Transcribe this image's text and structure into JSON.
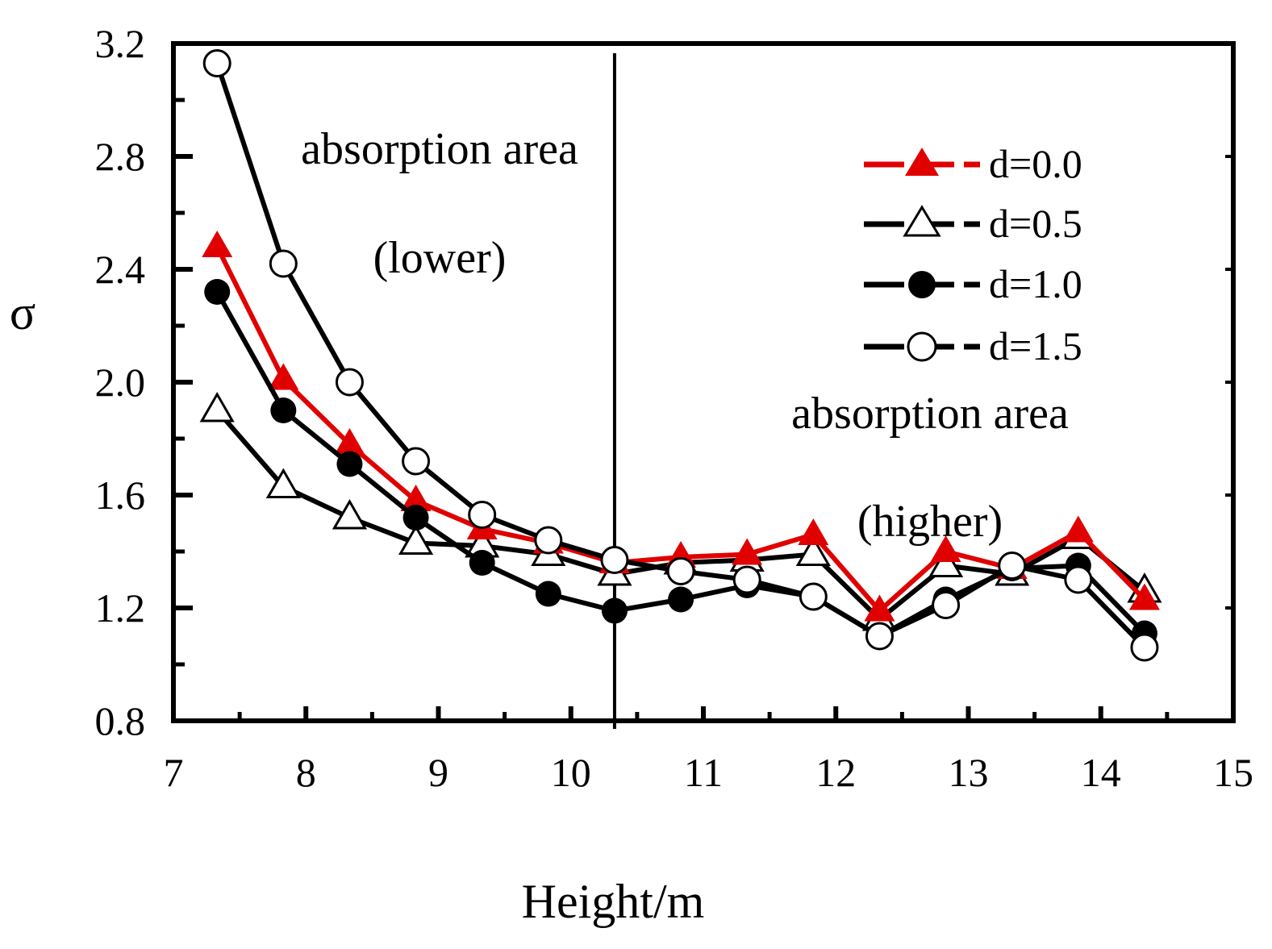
{
  "chart_data": {
    "type": "line",
    "title": "",
    "xlabel": "Height/m",
    "ylabel": "σ",
    "xlim": [
      7,
      15
    ],
    "ylim": [
      0.8,
      3.2
    ],
    "xticks": [
      7,
      8,
      9,
      10,
      11,
      12,
      13,
      14,
      15
    ],
    "yticks": [
      0.8,
      1.2,
      1.6,
      2.0,
      2.4,
      2.8,
      3.2
    ],
    "xtick_labels": [
      "7",
      "8",
      "9",
      "10",
      "11",
      "12",
      "13",
      "14",
      "15"
    ],
    "ytick_labels": [
      "0.8",
      "1.2",
      "1.6",
      "2.0",
      "2.4",
      "2.8",
      "3.2"
    ],
    "x": [
      7.33,
      7.83,
      8.33,
      8.83,
      9.33,
      9.83,
      10.33,
      10.83,
      11.33,
      11.83,
      12.33,
      12.83,
      13.33,
      13.83,
      14.33
    ],
    "series": [
      {
        "name": "d=0.0",
        "marker": "filled-triangle",
        "color": "#e00000",
        "values": [
          2.48,
          2.01,
          1.78,
          1.58,
          1.48,
          1.43,
          1.36,
          1.38,
          1.39,
          1.46,
          1.19,
          1.4,
          1.34,
          1.47,
          1.23
        ]
      },
      {
        "name": "d=0.5",
        "marker": "open-triangle",
        "color": "#000000",
        "values": [
          1.9,
          1.63,
          1.52,
          1.43,
          1.42,
          1.39,
          1.32,
          1.36,
          1.37,
          1.39,
          1.16,
          1.35,
          1.32,
          1.45,
          1.26
        ]
      },
      {
        "name": "d=1.0",
        "marker": "filled-circle",
        "color": "#000000",
        "values": [
          2.32,
          1.9,
          1.71,
          1.52,
          1.36,
          1.25,
          1.19,
          1.23,
          1.28,
          1.24,
          1.1,
          1.23,
          1.34,
          1.35,
          1.11
        ]
      },
      {
        "name": "d=1.5",
        "marker": "open-circle",
        "color": "#000000",
        "values": [
          3.13,
          2.42,
          2.0,
          1.72,
          1.53,
          1.44,
          1.37,
          1.33,
          1.3,
          1.24,
          1.1,
          1.21,
          1.35,
          1.3,
          1.06
        ]
      }
    ],
    "divider_x": 10.33,
    "annotations": [
      {
        "text": "absorption area",
        "region": "lower"
      },
      {
        "text": "(lower)",
        "region": "lower"
      },
      {
        "text": "absorption area",
        "region": "higher"
      },
      {
        "text": "(higher)",
        "region": "higher"
      }
    ],
    "legend_position": "top-right"
  }
}
